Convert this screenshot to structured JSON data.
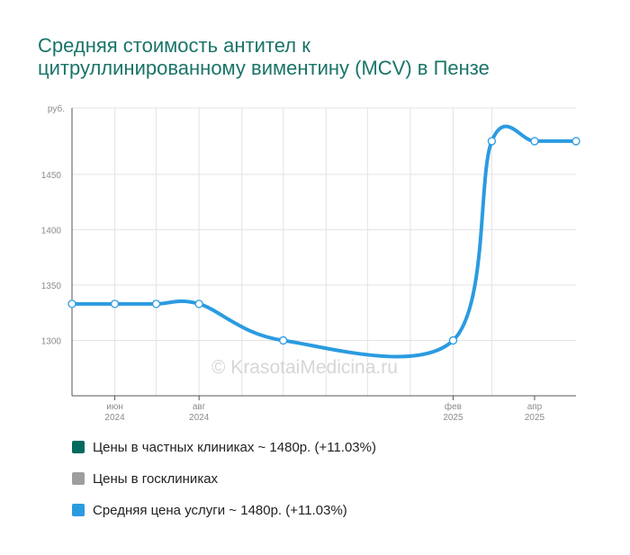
{
  "title_lines": [
    "Средняя стоимость антител к",
    "цитруллинированному виментину (MCV) в Пензе"
  ],
  "watermark": "© KrasotaiMedicina.ru",
  "legend": [
    {
      "label": "Цены в частных клиниках ~ 1480р. (+11.03%)",
      "color": "#006a5d"
    },
    {
      "label": "Цены в госклиниках",
      "color": "#9e9e9e"
    },
    {
      "label": "Средняя цена услуги ~ 1480р. (+11.03%)",
      "color": "#2b9be0"
    }
  ],
  "chart_data": {
    "type": "line",
    "title": "Средняя стоимость антител к цитруллинированному виментину (MCV) в Пензе",
    "ylabel": "руб.",
    "ylim": [
      1250,
      1510
    ],
    "yticks": [
      1300,
      1350,
      1400,
      1450
    ],
    "x": [
      "2024-05",
      "2024-06",
      "2024-07",
      "2024-08",
      "2024-09",
      "2024-10",
      "2024-11",
      "2024-12",
      "2025-01",
      "2025-02",
      "2025-03"
    ],
    "xticks": [
      {
        "x": "2024-06",
        "line1": "июн",
        "line2": "2024"
      },
      {
        "x": "2024-08",
        "line1": "авг",
        "line2": "2024"
      },
      {
        "x": "2025-02",
        "line1": "фев",
        "line2": "2025"
      },
      {
        "x": "2025-04",
        "line1": "апр",
        "line2": "2025"
      }
    ],
    "series": [
      {
        "color": "#2b9be0",
        "points": [
          {
            "x": "2024-05",
            "y": 1333
          },
          {
            "x": "2024-06",
            "y": 1333
          },
          {
            "x": "2024-07",
            "y": 1333
          },
          {
            "x": "2024-08",
            "y": 1333
          },
          {
            "x": "2024-10",
            "y": 1300
          },
          {
            "x": "2025-02",
            "y": 1300
          },
          {
            "x": "2025-03",
            "y": 1480
          },
          {
            "x": "2025-04",
            "y": 1480
          },
          {
            "x": "2025-05",
            "y": 1480
          }
        ]
      }
    ],
    "grid": true
  }
}
